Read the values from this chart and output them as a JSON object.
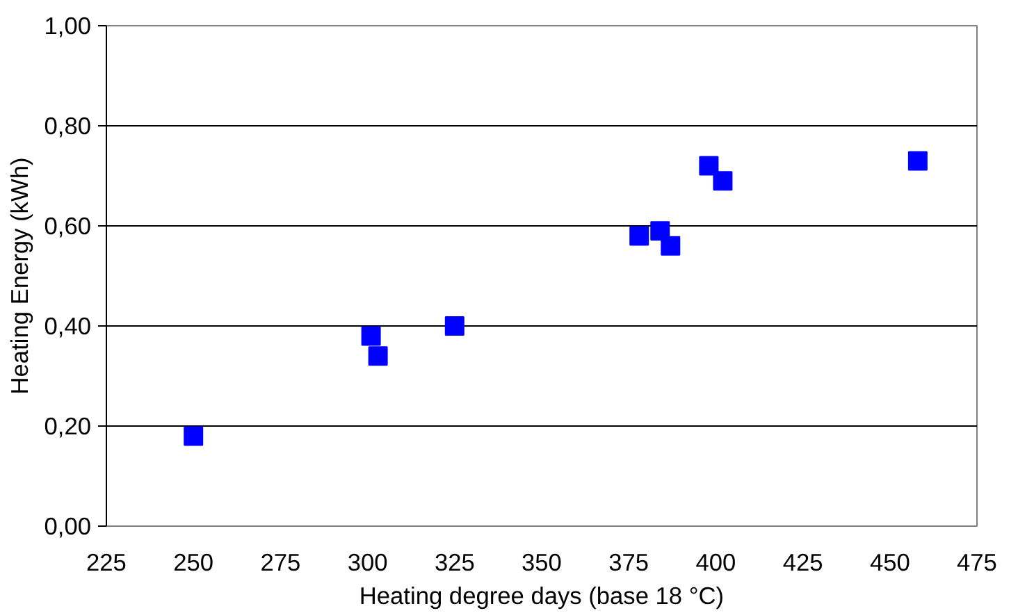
{
  "chart_data": {
    "type": "scatter",
    "xlabel": "Heating degree days (base 18 °C)",
    "ylabel": "Heating Energy (kWh)",
    "x": [
      250,
      301,
      303,
      325,
      378,
      384,
      387,
      398,
      402,
      458
    ],
    "series": [
      {
        "color": "#0000ff",
        "values": [
          0.18,
          0.38,
          0.34,
          0.4,
          0.58,
          0.59,
          0.56,
          0.72,
          0.69,
          0.73
        ]
      }
    ],
    "marker": "square",
    "grid": "y",
    "xlim": [
      225,
      475
    ],
    "xticks": [
      225,
      250,
      275,
      300,
      325,
      350,
      375,
      400,
      425,
      450,
      475
    ],
    "ylim": [
      0,
      1
    ],
    "yticks": [
      {
        "value": 0,
        "label": "0,00"
      },
      {
        "value": 0.2,
        "label": "0,20"
      },
      {
        "value": 0.4,
        "label": "0,40"
      },
      {
        "value": 0.6,
        "label": "0,60"
      },
      {
        "value": 0.8,
        "label": "0,80"
      },
      {
        "value": 1,
        "label": "1,00"
      }
    ]
  }
}
